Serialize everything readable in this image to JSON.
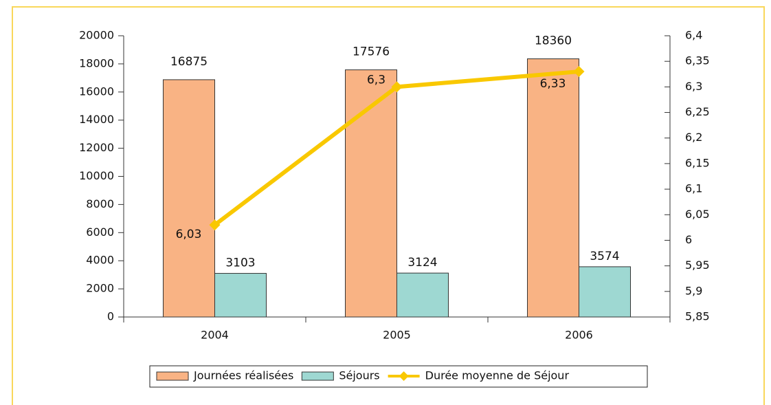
{
  "chart_data": {
    "type": "bar",
    "categories": [
      "2004",
      "2005",
      "2006"
    ],
    "series": [
      {
        "name": "Journées réalisées",
        "color": "#f9b384",
        "values": [
          16875,
          17576,
          18360
        ]
      },
      {
        "name": "Séjours",
        "color": "#9ed8d2",
        "values": [
          3103,
          3124,
          3574
        ]
      },
      {
        "name": "Durée moyenne de Séjour",
        "color": "#f9c800",
        "type": "line",
        "axis": "y2",
        "values": [
          6.03,
          6.3,
          6.33
        ],
        "value_labels": [
          "6,03",
          "6,3",
          "6,33"
        ]
      }
    ],
    "ylim": [
      0,
      20000
    ],
    "yticks": [
      0,
      2000,
      4000,
      6000,
      8000,
      10000,
      12000,
      14000,
      16000,
      18000,
      20000
    ],
    "y2lim": [
      5.85,
      6.4
    ],
    "y2ticks": [
      {
        "value": 5.85,
        "label": "5,85"
      },
      {
        "value": 5.9,
        "label": "5,9"
      },
      {
        "value": 5.95,
        "label": "5,95"
      },
      6,
      {
        "value": 6.05,
        "label": "6,05"
      },
      {
        "value": 6.1,
        "label": "6,1"
      },
      {
        "value": 6.15,
        "label": "6,15"
      },
      {
        "value": 6.2,
        "label": "6,2"
      },
      {
        "value": 6.25,
        "label": "6,25"
      },
      {
        "value": 6.3,
        "label": "6,3"
      },
      {
        "value": 6.35,
        "label": "6,35"
      },
      {
        "value": 6.4,
        "label": "6,4"
      }
    ],
    "legend": "bottom"
  }
}
